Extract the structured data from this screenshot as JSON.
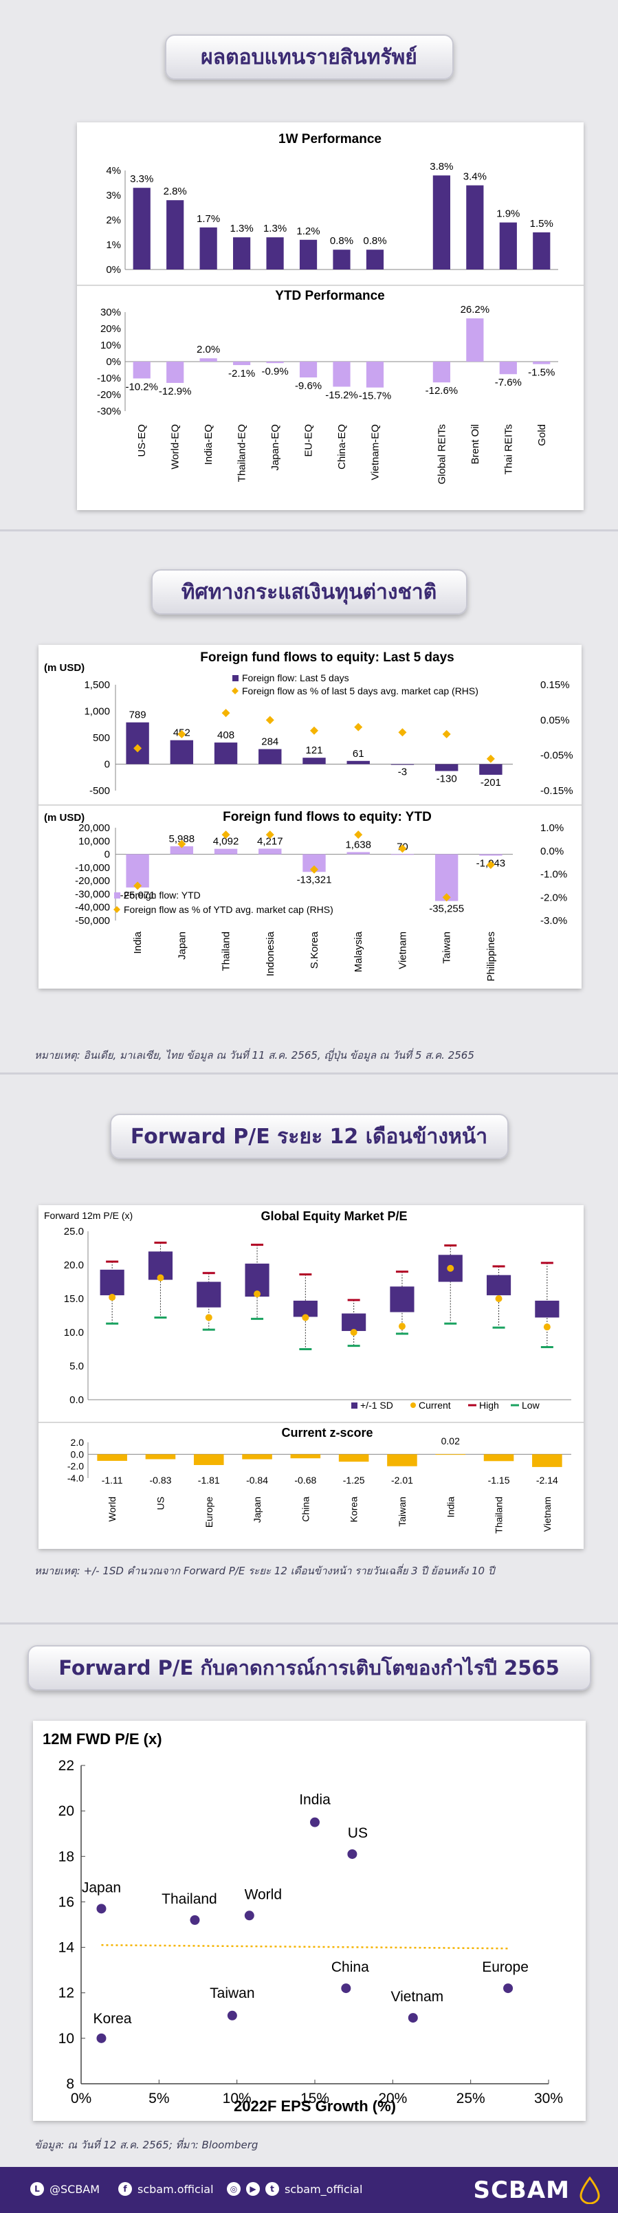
{
  "sections": {
    "s1_title": "ผลตอบแทนรายสินทรัพย์",
    "s2_title": "ทิศทางกระแสเงินทุนต่างชาติ",
    "s2_note": "หมายเหตุ: อินเดีย, มาเลเซีย, ไทย ข้อมูล ณ วันที่ 11 ส.ค. 2565, ญี่ปุ่น ข้อมูล ณ วันที่ 5 ส.ค. 2565",
    "s3_title": "Forward P/E ระยะ 12 เดือนข้างหน้า",
    "s3_note": "หมายเหตุ: +/- 1SD คำนวณจาก Forward P/E ระยะ 12 เดือนข้างหน้า รายวันเฉลี่ย 3 ปี ย้อนหลัง 10 ปี",
    "s4_title": "Forward P/E กับคาดการณ์การเติบโตของกำไรปี 2565",
    "s4_note": "ข้อมูล: ณ วันที่ 12 ส.ค. 2565; ที่มา: Bloomberg"
  },
  "footer": {
    "line": "@SCBAM",
    "facebook": "scbam.official",
    "social": "scbam_official",
    "brand": "SCBAM"
  },
  "colors": {
    "purple": "#4b2e83",
    "light_purple": "#c9a4f0",
    "orange": "#f5b300",
    "red": "#b00020",
    "green": "#1aa260"
  },
  "chart_data": [
    {
      "type": "bar",
      "title": "1W Performance",
      "categories": [
        "US-EQ",
        "World-EQ",
        "India-EQ",
        "Thailand-EQ",
        "Japan-EQ",
        "EU-EQ",
        "China-EQ",
        "Vietnam-EQ",
        "Global REITs",
        "Brent Oil",
        "Thai REITs",
        "Gold"
      ],
      "values": [
        3.3,
        2.8,
        1.7,
        1.3,
        1.3,
        1.2,
        0.8,
        0.8,
        3.8,
        3.4,
        1.9,
        1.5
      ],
      "labels": [
        "3.3%",
        "2.8%",
        "1.7%",
        "1.3%",
        "1.3%",
        "1.2%",
        "0.8%",
        "0.8%",
        "3.8%",
        "3.4%",
        "1.9%",
        "1.5%"
      ],
      "yticks": [
        "4%",
        "3%",
        "2%",
        "1%",
        "0%"
      ],
      "ylim": [
        0,
        4
      ]
    },
    {
      "type": "bar",
      "title": "YTD Performance",
      "categories": [
        "US-EQ",
        "World-EQ",
        "India-EQ",
        "Thailand-EQ",
        "Japan-EQ",
        "EU-EQ",
        "China-EQ",
        "Vietnam-EQ",
        "Global REITs",
        "Brent Oil",
        "Thai REITs",
        "Gold"
      ],
      "values": [
        -10.2,
        -12.9,
        2.0,
        -2.1,
        -0.9,
        -9.6,
        -15.2,
        -15.7,
        -12.6,
        26.2,
        -7.6,
        -1.5
      ],
      "labels": [
        "-10.2%",
        "-12.9%",
        "2.0%",
        "-2.1%",
        "-0.9%",
        "-9.6%",
        "-15.2%",
        "-15.7%",
        "-12.6%",
        "26.2%",
        "-7.6%",
        "-1.5%"
      ],
      "yticks": [
        "30%",
        "20%",
        "10%",
        "0%",
        "-10%",
        "-20%",
        "-30%"
      ],
      "ylim": [
        -30,
        30
      ]
    },
    {
      "type": "bar",
      "title": "Foreign fund flows to equity: Last 5 days",
      "ylabel": "(m USD)",
      "categories": [
        "India",
        "Japan",
        "Thailand",
        "Indonesia",
        "S.Korea",
        "Malaysia",
        "Vietnam",
        "Taiwan",
        "Philippines"
      ],
      "series": [
        {
          "name": "Foreign flow: Last 5 days",
          "values": [
            789,
            452,
            408,
            284,
            121,
            61,
            -3,
            -130,
            -201
          ],
          "labels": [
            "789",
            "452",
            "408",
            "284",
            "121",
            "61",
            "-3",
            "-130",
            "-201"
          ]
        },
        {
          "name": "Foreign flow as % of last 5 days avg. market cap (RHS)",
          "values": [
            -0.03,
            0.01,
            0.07,
            0.05,
            0.02,
            0.03,
            0.015,
            0.01,
            -0.06
          ]
        }
      ],
      "yticks": [
        "1,500",
        "1,000",
        "500",
        "0",
        "-500"
      ],
      "y2ticks": [
        "0.15%",
        "0.05%",
        "-0.05%",
        "-0.15%"
      ],
      "ylim": [
        -500,
        1500
      ],
      "y2lim": [
        -0.15,
        0.15
      ]
    },
    {
      "type": "bar",
      "title": "Foreign fund flows to equity: YTD",
      "ylabel": "(m USD)",
      "categories": [
        "India",
        "Japan",
        "Thailand",
        "Indonesia",
        "S.Korea",
        "Malaysia",
        "Vietnam",
        "Taiwan",
        "Philippines"
      ],
      "series": [
        {
          "name": "Foreign flow: YTD",
          "values": [
            -25071,
            5988,
            4092,
            4217,
            -13321,
            1638,
            70,
            -35255,
            -1043
          ],
          "labels": [
            "-25,071",
            "5,988",
            "4,092",
            "4,217",
            "-13,321",
            "1,638",
            "70",
            "-35,255",
            "-1,043"
          ]
        },
        {
          "name": "Foreign flow as % of YTD avg. market cap (RHS)",
          "values": [
            -1.5,
            0.3,
            0.7,
            0.7,
            -0.8,
            0.7,
            0.1,
            -2.0,
            -0.6
          ]
        }
      ],
      "yticks": [
        "20,000",
        "10,000",
        "0",
        "-10,000",
        "-20,000",
        "-30,000",
        "-40,000",
        "-50,000"
      ],
      "y2ticks": [
        "1.0%",
        "0.0%",
        "-1.0%",
        "-2.0%",
        "-3.0%"
      ],
      "ylim": [
        -50000,
        20000
      ],
      "y2lim": [
        -3,
        1
      ]
    },
    {
      "type": "box",
      "title": "Global Equity Market P/E",
      "ylabel": "Forward 12m P/E (x)",
      "categories": [
        "World",
        "US",
        "Europe",
        "Japan",
        "China",
        "Korea",
        "Taiwan",
        "India",
        "Thailand",
        "Vietnam"
      ],
      "series": [
        {
          "name": "+/-1 SD",
          "lower": [
            15.5,
            17.8,
            13.7,
            15.3,
            12.3,
            10.2,
            13,
            17.5,
            15.5,
            12.2
          ],
          "upper": [
            19.3,
            22,
            17.5,
            20.2,
            14.7,
            12.8,
            16.8,
            21.5,
            18.5,
            14.7
          ]
        },
        {
          "name": "Current",
          "values": [
            15.2,
            18.1,
            12.2,
            15.7,
            12.2,
            10,
            10.9,
            19.5,
            15,
            10.8
          ]
        },
        {
          "name": "High",
          "values": [
            20.5,
            23.3,
            18.8,
            23,
            18.6,
            14.8,
            19,
            22.9,
            19.8,
            20.3
          ]
        },
        {
          "name": "Low",
          "values": [
            11.3,
            12.2,
            10.4,
            12,
            7.5,
            8,
            9.8,
            11.3,
            10.7,
            7.8
          ]
        }
      ],
      "yticks": [
        "25.0",
        "20.0",
        "15.0",
        "10.0",
        "5.0",
        "0.0"
      ],
      "ylim": [
        0,
        25
      ]
    },
    {
      "type": "bar",
      "title": "Current z-score",
      "categories": [
        "World",
        "US",
        "Europe",
        "Japan",
        "China",
        "Korea",
        "Taiwan",
        "India",
        "Thailand",
        "Vietnam"
      ],
      "values": [
        -1.11,
        -0.83,
        -1.81,
        -0.84,
        -0.68,
        -1.25,
        -2.01,
        0.02,
        -1.15,
        -2.14
      ],
      "labels": [
        "-1.11",
        "-0.83",
        "-1.81",
        "-0.84",
        "-0.68",
        "-1.25",
        "-2.01",
        "0.02",
        "-1.15",
        "-2.14"
      ],
      "yticks": [
        "2.0",
        "0.0",
        "-2.0",
        "-4.0"
      ],
      "ylim": [
        -4,
        2
      ]
    },
    {
      "type": "scatter",
      "ylabel": "12M FWD P/E (x)",
      "xlabel": "2022F EPS Growth (%)",
      "points": [
        {
          "label": "Japan",
          "x": 1.3,
          "y": 15.7
        },
        {
          "label": "Korea",
          "x": 1.3,
          "y": 10
        },
        {
          "label": "Thailand",
          "x": 7.3,
          "y": 15.2
        },
        {
          "label": "World",
          "x": 10.8,
          "y": 15.4
        },
        {
          "label": "Taiwan",
          "x": 9.7,
          "y": 11
        },
        {
          "label": "India",
          "x": 15,
          "y": 19.5
        },
        {
          "label": "US",
          "x": 17.4,
          "y": 18.1
        },
        {
          "label": "China",
          "x": 17,
          "y": 12.2
        },
        {
          "label": "Vietnam",
          "x": 21.3,
          "y": 10.9
        },
        {
          "label": "Europe",
          "x": 27.4,
          "y": 12.2
        }
      ],
      "xticks": [
        "0%",
        "5%",
        "10%",
        "15%",
        "20%",
        "25%",
        "30%"
      ],
      "yticks": [
        "22",
        "20",
        "18",
        "16",
        "14",
        "12",
        "10",
        "8"
      ],
      "xlim": [
        0,
        30
      ],
      "ylim": [
        8,
        22
      ],
      "trend": [
        14.1,
        13.95
      ]
    }
  ]
}
